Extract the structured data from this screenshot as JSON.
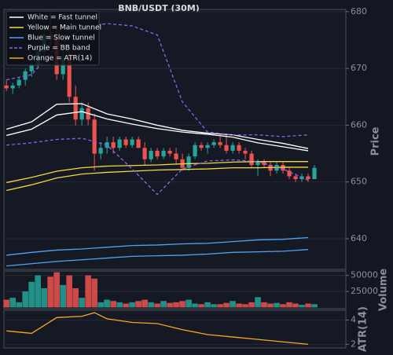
{
  "chart_data": {
    "type": "candlestick",
    "title": "BNB/USDT (30M)",
    "ylabel": "Price",
    "xlim": [
      -0.4,
      54
    ],
    "ylim": [
      634.6,
      680.4
    ],
    "yticks": [
      640,
      650,
      660,
      670,
      680
    ],
    "grid": true,
    "legend_corner": "upper left",
    "up_color": "#26a69a",
    "down_color": "#ef5350",
    "candles": {
      "x": [
        0,
        1,
        2,
        3,
        4,
        5,
        6,
        7,
        8,
        9,
        10,
        11,
        12,
        13,
        14,
        15,
        16,
        17,
        18,
        19,
        20,
        21,
        22,
        23,
        24,
        25,
        26,
        27,
        28,
        29,
        30,
        31,
        32,
        33,
        34,
        35,
        36,
        37,
        38,
        39,
        40,
        41,
        42,
        43,
        44,
        45,
        46,
        47,
        48,
        49
      ],
      "open": [
        667,
        666.5,
        667,
        668,
        669.5,
        670.5,
        673,
        676,
        675,
        669,
        672,
        665,
        661,
        663,
        661,
        655,
        656,
        657,
        656,
        657.5,
        656.5,
        657.5,
        656,
        654,
        655.5,
        654.5,
        655.5,
        655,
        654,
        652.5,
        654.5,
        656.5,
        656,
        656.5,
        657,
        656.5,
        655.5,
        656.5,
        655.5,
        655,
        653,
        653.5,
        653,
        652,
        653,
        652,
        651,
        650.5,
        651,
        650.5
      ],
      "high": [
        668,
        667.5,
        668.5,
        670,
        671,
        674,
        677,
        680,
        677,
        673,
        673,
        667,
        664,
        664,
        662,
        657,
        658,
        658,
        658,
        658,
        658,
        658,
        657,
        656,
        656,
        656,
        656,
        656,
        655,
        655,
        657,
        657,
        657,
        657.5,
        658,
        658.5,
        657,
        657,
        656,
        655.5,
        654,
        654,
        653.5,
        653.5,
        653.5,
        652.5,
        651.5,
        651.5,
        651.5,
        653
      ],
      "low": [
        666,
        665.5,
        666.5,
        667,
        668.5,
        670,
        672,
        674,
        668,
        668,
        664,
        660,
        660,
        660,
        652,
        654,
        655,
        655,
        655.5,
        656,
        656,
        656,
        653,
        653.5,
        654,
        654,
        654.5,
        653,
        652,
        652,
        654,
        655.5,
        655,
        656,
        656,
        655,
        655,
        655,
        654,
        652.5,
        651,
        652.5,
        651,
        651.5,
        651.5,
        650.5,
        650,
        650,
        650,
        650.5
      ],
      "close": [
        666.5,
        667,
        668,
        669.5,
        670.5,
        673,
        676,
        675,
        669,
        672,
        665,
        661,
        663,
        661,
        655,
        656,
        657,
        656,
        657.5,
        656.5,
        657.5,
        656,
        654,
        655.5,
        654.5,
        655.5,
        655,
        654,
        652.5,
        654.5,
        656.5,
        656,
        656.5,
        657,
        656.5,
        655.5,
        656.5,
        655.5,
        655,
        653,
        653.5,
        653,
        652,
        653,
        652,
        651,
        650.5,
        651,
        650.5,
        652.5
      ]
    },
    "overlays": [
      {
        "name": "White = Fast tunnel",
        "color": "#ffffff",
        "dash": false,
        "x": [
          0,
          4,
          8,
          12,
          16,
          20,
          24,
          28,
          32,
          36,
          40,
          44,
          48
        ],
        "lines": [
          [
            659.3,
            660.6,
            663.7,
            663.8,
            662.0,
            661.1,
            660.0,
            659.1,
            658.6,
            658.3,
            657.5,
            656.8,
            655.9
          ],
          [
            658.2,
            659.3,
            661.8,
            662.4,
            661.1,
            660.2,
            659.4,
            658.8,
            658.4,
            657.9,
            656.9,
            656.2,
            655.5
          ]
        ]
      },
      {
        "name": "Yellow = Main tunnel",
        "color": "#f5d742",
        "dash": false,
        "x": [
          0,
          4,
          8,
          12,
          16,
          20,
          24,
          28,
          32,
          36,
          40,
          44,
          48
        ],
        "lines": [
          [
            649.9,
            650.8,
            651.9,
            652.5,
            652.8,
            652.9,
            653.0,
            653.2,
            653.3,
            653.5,
            653.6,
            653.6,
            653.6
          ],
          [
            648.5,
            649.5,
            650.7,
            651.4,
            651.7,
            651.9,
            652.1,
            652.2,
            652.3,
            652.5,
            652.5,
            652.6,
            652.6
          ]
        ]
      },
      {
        "name": "Blue = Slow tunnel",
        "color": "#4fa3f0",
        "dash": false,
        "x": [
          0,
          4,
          8,
          12,
          16,
          20,
          24,
          28,
          32,
          36,
          40,
          44,
          48
        ],
        "lines": [
          [
            637.1,
            637.6,
            638.0,
            638.2,
            638.5,
            638.8,
            638.9,
            639.1,
            639.2,
            639.5,
            639.8,
            639.9,
            640.2
          ],
          [
            635.2,
            635.6,
            636.0,
            636.3,
            636.6,
            636.9,
            637.0,
            637.1,
            637.3,
            637.6,
            637.7,
            637.8,
            638.1
          ]
        ]
      },
      {
        "name": "Purple = BB band",
        "color": "#8a63f0",
        "dash": true,
        "x": [
          0,
          4,
          8,
          12,
          16,
          20,
          24,
          28,
          32,
          36,
          40,
          44,
          48
        ],
        "lines": [
          [
            668.0,
            668.9,
            673.8,
            677.2,
            677.9,
            677.5,
            675.9,
            664.1,
            658.8,
            658.3,
            658.3,
            658.0,
            658.3
          ],
          [
            656.5,
            656.9,
            657.5,
            657.7,
            656.5,
            652.3,
            647.8,
            652.3,
            653.7,
            653.9,
            653.6,
            652.3,
            650.3
          ]
        ]
      }
    ],
    "volume": {
      "ylabel": "Volume",
      "ylim": [
        -2000,
        57000
      ],
      "yticks": [
        25000,
        50000
      ],
      "values": [
        12000,
        15000,
        8000,
        25000,
        40000,
        50000,
        30000,
        48000,
        55000,
        35000,
        50000,
        30000,
        15000,
        50000,
        45000,
        8000,
        12000,
        10000,
        8000,
        6000,
        8000,
        10000,
        12000,
        8000,
        6000,
        10000,
        7000,
        8000,
        10000,
        12000,
        6000,
        5000,
        8000,
        5000,
        5000,
        7000,
        10000,
        6000,
        5000,
        8000,
        16000,
        8000,
        6000,
        7000,
        5000,
        8000,
        6000,
        4000,
        6000,
        5000
      ]
    },
    "atr": {
      "name": "Orange = ATR(14)",
      "ylabel": "ATR(14)",
      "color": "#f5a623",
      "ylim": [
        1.7,
        4.8
      ],
      "yticks": [
        2,
        4
      ],
      "x": [
        0,
        4,
        8,
        12,
        14,
        16,
        20,
        24,
        28,
        32,
        36,
        40,
        44,
        48
      ],
      "values": [
        3.1,
        2.9,
        4.2,
        4.3,
        4.6,
        4.1,
        3.8,
        3.7,
        3.2,
        2.8,
        2.6,
        2.4,
        2.2,
        2.0
      ]
    }
  }
}
